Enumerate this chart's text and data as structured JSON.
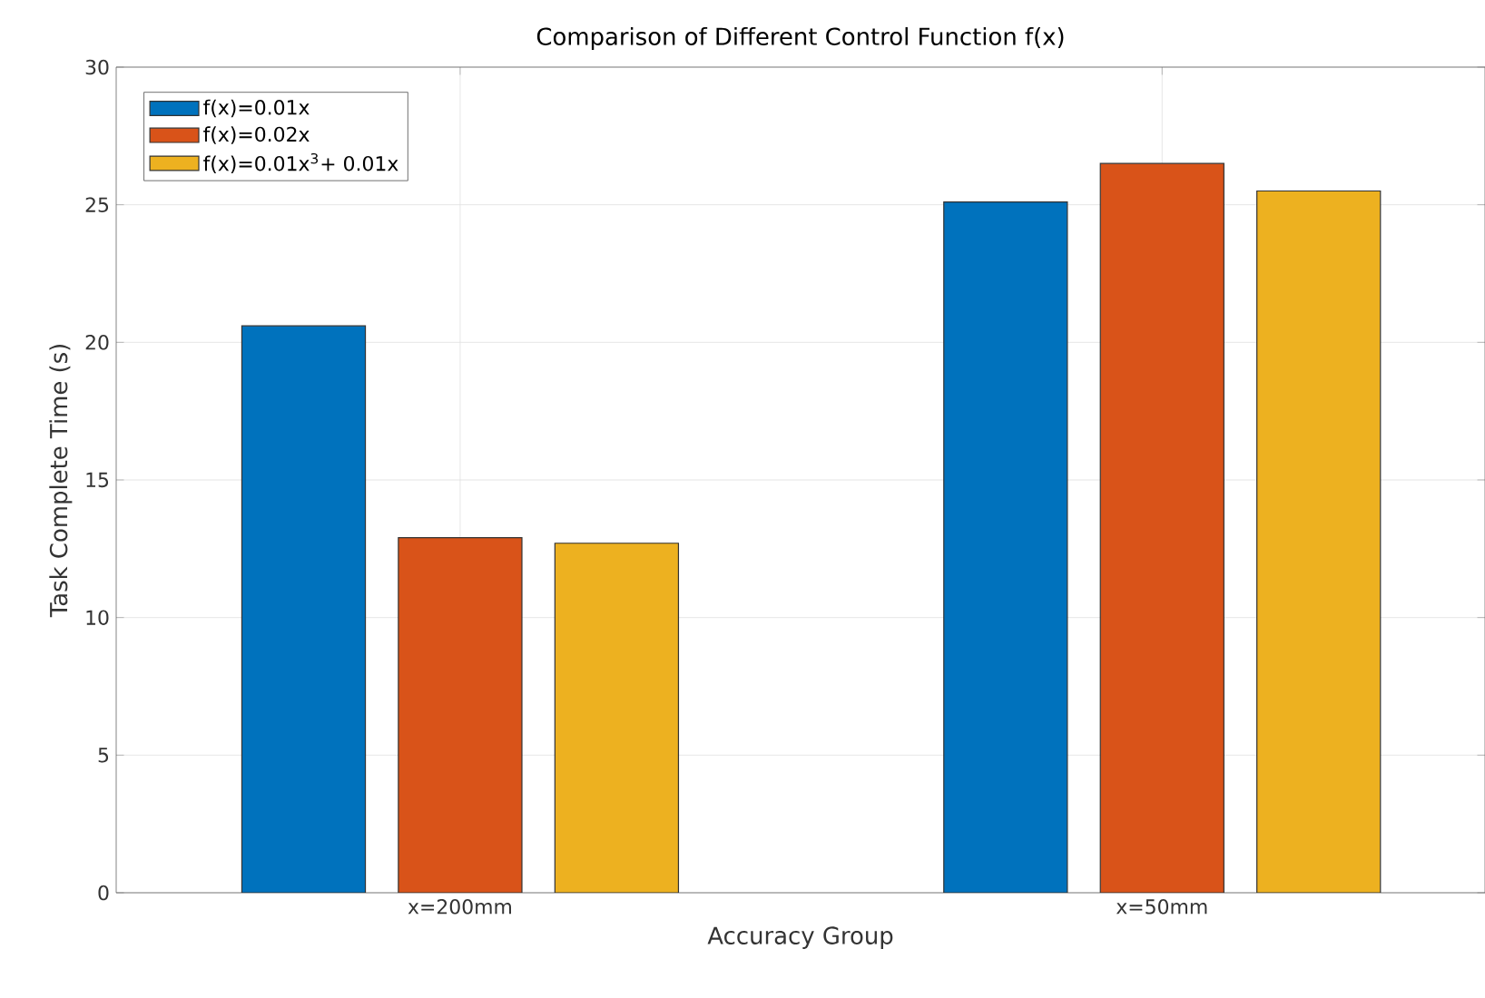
{
  "chart_data": {
    "type": "bar",
    "title": "Comparison of Different Control Function f(x)",
    "xlabel": "Accuracy Group",
    "ylabel": "Task Complete Time (s)",
    "categories": [
      "x=200mm",
      "x=50mm"
    ],
    "series": [
      {
        "name": "f(x)=0.01x",
        "color": "#0072bd",
        "values": [
          20.6,
          25.1
        ]
      },
      {
        "name": "f(x)=0.02x",
        "color": "#d95319",
        "values": [
          12.9,
          26.5
        ]
      },
      {
        "name": "f(x)=0.01x$^{3}$+ 0.01x",
        "color": "#edb120",
        "values": [
          12.7,
          25.5
        ]
      }
    ],
    "ylim": [
      0,
      30
    ],
    "yticks": [
      0,
      5,
      10,
      15,
      20,
      25,
      30
    ],
    "grid": true,
    "legend": "top left"
  }
}
